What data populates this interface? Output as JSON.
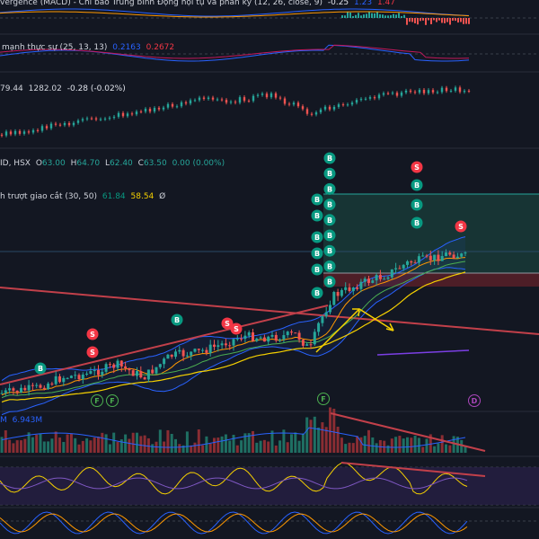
{
  "panes": {
    "macd": {
      "title": "vergence (MACD) - Chỉ báo Trung bình Động hội tụ và phân kỳ (12, 26, close, 9)",
      "v1": "-0.25",
      "v2": "1.23",
      "v3": "1.47"
    },
    "tsi": {
      "title": "mạnh thực sự (25, 13, 13)",
      "v1": "0.2163",
      "v2": "0.2672"
    },
    "compare": {
      "v1": "79.44",
      "v2": "1282.02",
      "v3": "-0.28 (-0.02%)"
    },
    "price": {
      "symbol": "ID, HSX",
      "open_label": "O",
      "open": "63.00",
      "high_label": "H",
      "high": "64.70",
      "low_label": "L",
      "low": "62.40",
      "close_label": "C",
      "close": "63.50",
      "change": "0.00 (0.00%)",
      "ma_title": "h trượt giao cắt (30, 50)",
      "ma1": "61.84",
      "ma2": "58.54",
      "ma_suffix": "Ø"
    },
    "volume": {
      "label": "M",
      "value": "6.943M"
    }
  },
  "signals": {
    "buy": "B",
    "sell": "S",
    "flag": "F",
    "dividend": "D"
  },
  "colors": {
    "background": "#131722",
    "up": "#26a69a",
    "down": "#ef5350",
    "accent": "#2962ff",
    "ma_yellow": "#f5d000"
  }
}
